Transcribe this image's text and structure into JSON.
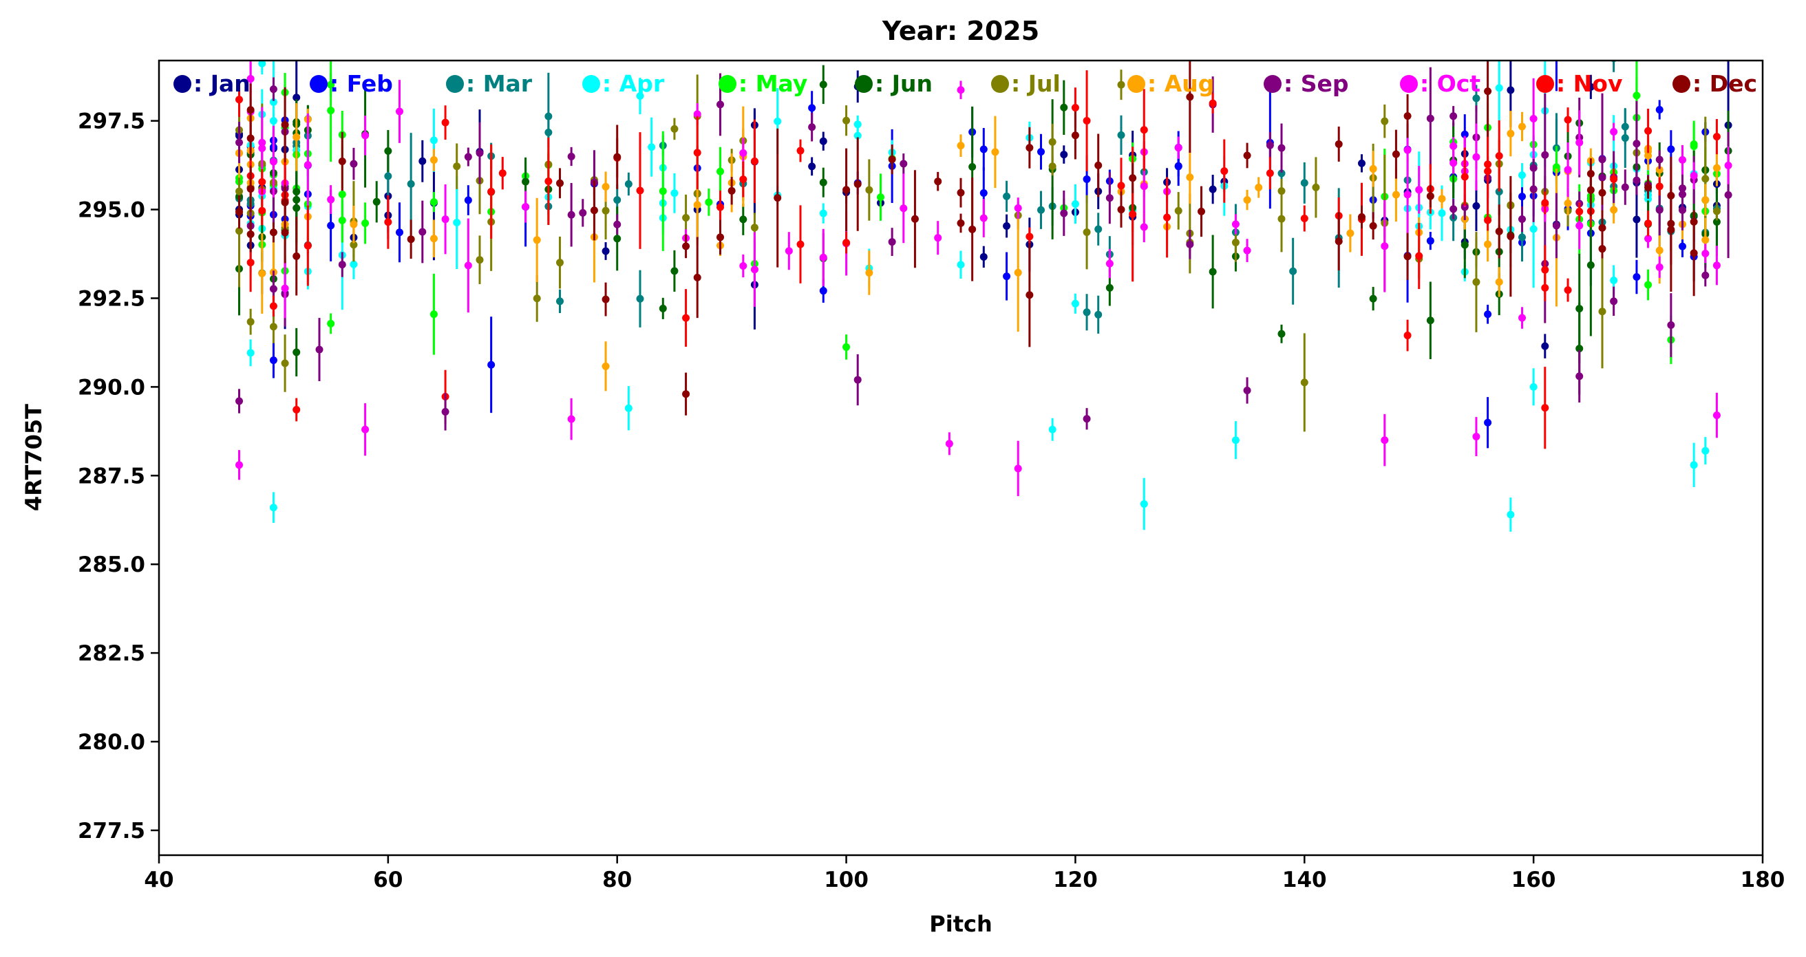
{
  "chart_data": {
    "type": "scatter",
    "subtype": "errorbar",
    "title": "Year: 2025",
    "xlabel": "Pitch",
    "ylabel": "4RT705T",
    "xlim": [
      40,
      180
    ],
    "ylim": [
      276.8,
      299.2
    ],
    "xticks": [
      {
        "value": 40,
        "label": "40"
      },
      {
        "value": 60,
        "label": "60"
      },
      {
        "value": 80,
        "label": "80"
      },
      {
        "value": 100,
        "label": "100"
      },
      {
        "value": 120,
        "label": "120"
      },
      {
        "value": 140,
        "label": "140"
      },
      {
        "value": 160,
        "label": "160"
      },
      {
        "value": 180,
        "label": "180"
      }
    ],
    "yticks": [
      {
        "value": 277.5,
        "label": "277.5"
      },
      {
        "value": 280.0,
        "label": "280.0"
      },
      {
        "value": 282.5,
        "label": "282.5"
      },
      {
        "value": 285.0,
        "label": "285.0"
      },
      {
        "value": 287.5,
        "label": "287.5"
      },
      {
        "value": 290.0,
        "label": "290.0"
      },
      {
        "value": 292.5,
        "label": "292.5"
      },
      {
        "value": 295.0,
        "label": "295.0"
      },
      {
        "value": 297.5,
        "label": "297.5"
      }
    ],
    "legend_position": "top, inside plot",
    "legend_separator": ": ",
    "x_coverage": "integer pitches 47-177, gap near 141-145",
    "typical_value": 295.0,
    "typical_spread": 2.3,
    "series": [
      {
        "name": "Jan",
        "color": "#00008b",
        "n": 60,
        "seed": 11
      },
      {
        "name": "Feb",
        "color": "#0000ff",
        "n": 60,
        "seed": 23
      },
      {
        "name": "Mar",
        "color": "#008080",
        "n": 60,
        "seed": 37
      },
      {
        "name": "Apr",
        "color": "#00ffff",
        "n": 60,
        "seed": 41
      },
      {
        "name": "May",
        "color": "#00ff00",
        "n": 60,
        "seed": 53
      },
      {
        "name": "Jun",
        "color": "#006400",
        "n": 60,
        "seed": 67
      },
      {
        "name": "Jul",
        "color": "#808000",
        "n": 60,
        "seed": 71
      },
      {
        "name": "Aug",
        "color": "#ffa500",
        "n": 60,
        "seed": 83
      },
      {
        "name": "Sep",
        "color": "#800080",
        "n": 60,
        "seed": 97
      },
      {
        "name": "Oct",
        "color": "#ff00ff",
        "n": 60,
        "seed": 101
      },
      {
        "name": "Nov",
        "color": "#ff0000",
        "n": 60,
        "seed": 113
      },
      {
        "name": "Dec",
        "color": "#8b0000",
        "n": 60,
        "seed": 127
      }
    ],
    "outliers": [
      {
        "series": "Apr",
        "x": 50,
        "y": 286.6
      },
      {
        "series": "Apr",
        "x": 126,
        "y": 286.7
      },
      {
        "series": "Apr",
        "x": 158,
        "y": 286.4
      },
      {
        "series": "Oct",
        "x": 47,
        "y": 287.8
      },
      {
        "series": "Oct",
        "x": 115,
        "y": 287.7
      },
      {
        "series": "Oct",
        "x": 109,
        "y": 288.4
      },
      {
        "series": "Apr",
        "x": 118,
        "y": 288.8
      },
      {
        "series": "Oct",
        "x": 147,
        "y": 288.5
      },
      {
        "series": "Apr",
        "x": 174,
        "y": 287.8
      },
      {
        "series": "Apr",
        "x": 175,
        "y": 288.2
      },
      {
        "series": "Sep",
        "x": 47,
        "y": 289.6
      },
      {
        "series": "Sep",
        "x": 65,
        "y": 289.3
      },
      {
        "series": "Oct",
        "x": 58,
        "y": 288.8
      },
      {
        "series": "Apr",
        "x": 134,
        "y": 288.5
      },
      {
        "series": "Apr",
        "x": 81,
        "y": 289.4
      },
      {
        "series": "Sep",
        "x": 135,
        "y": 289.9
      },
      {
        "series": "Dec",
        "x": 86,
        "y": 289.8
      },
      {
        "series": "Sep",
        "x": 101,
        "y": 290.2
      },
      {
        "series": "Sep",
        "x": 121,
        "y": 289.1
      },
      {
        "series": "Apr",
        "x": 160,
        "y": 290.0
      },
      {
        "series": "Sep",
        "x": 164,
        "y": 290.3
      },
      {
        "series": "Oct",
        "x": 176,
        "y": 289.2
      },
      {
        "series": "Oct",
        "x": 155,
        "y": 288.6
      }
    ]
  }
}
